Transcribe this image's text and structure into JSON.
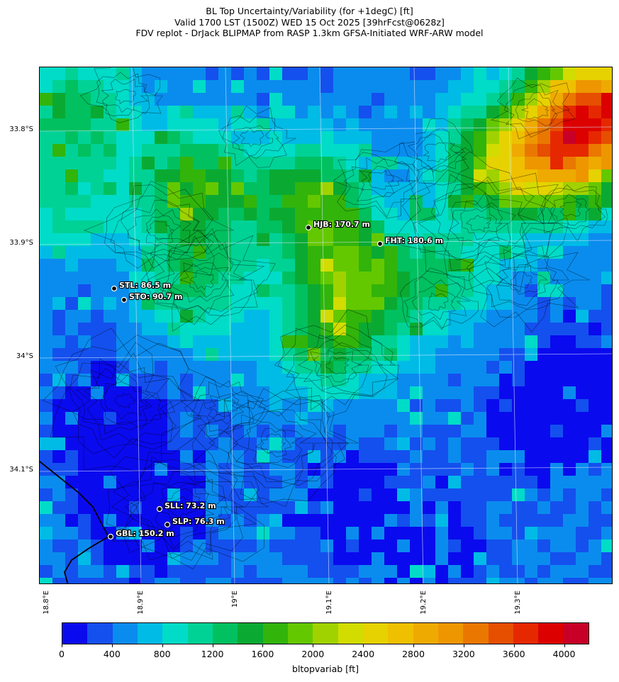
{
  "title": {
    "line1": "BL Top Uncertainty/Variability (for +1degC) [ft]",
    "line2": "Valid 1700 LST (1500Z) WED 15 Oct 2025 [39hrFcst@0628z]",
    "line3": "FDV replot - DrJack BLIPMAP from RASP 1.3km GFSA-Initiated WRF-ARW model"
  },
  "lat_labels": [
    "33.8°S",
    "33.9°S",
    "34°S",
    "34.1°S"
  ],
  "lon_labels": [
    "18.8°E",
    "18.9°E",
    "19°E",
    "19.1°E",
    "19.2°E",
    "19.3°E"
  ],
  "stations": [
    {
      "id": "HJB",
      "label": "HJB: 170.7 m"
    },
    {
      "id": "FHT",
      "label": "FHT: 180.6 m"
    },
    {
      "id": "STL",
      "label": "STL: 86.5 m"
    },
    {
      "id": "STO",
      "label": "STO: 90.7 m"
    },
    {
      "id": "SLL",
      "label": "SLL: 73.2 m"
    },
    {
      "id": "SLP",
      "label": "SLP: 76.3 m"
    },
    {
      "id": "GBL",
      "label": "GBL: 150.2 m"
    }
  ],
  "colorbar": {
    "label": "bltopvariab [ft]",
    "ticks": [
      "0",
      "400",
      "800",
      "1200",
      "1600",
      "2000",
      "2400",
      "2800",
      "3200",
      "3600",
      "4000"
    ],
    "colors": [
      "#0a0aee",
      "#1450ee",
      "#0a8cee",
      "#00bbe6",
      "#00dcc8",
      "#00d296",
      "#00c060",
      "#0aaa32",
      "#32b40a",
      "#64c800",
      "#a0d200",
      "#d2dc00",
      "#e6d200",
      "#eec000",
      "#eeaa00",
      "#ee9600",
      "#ea7800",
      "#e64e00",
      "#e62800",
      "#dc0000",
      "#c80028"
    ]
  },
  "map_style": {
    "background": "#1446ec",
    "contour_color": "#000000",
    "grid_color": "#d8e4ff",
    "coastline_color": "#000000"
  }
}
